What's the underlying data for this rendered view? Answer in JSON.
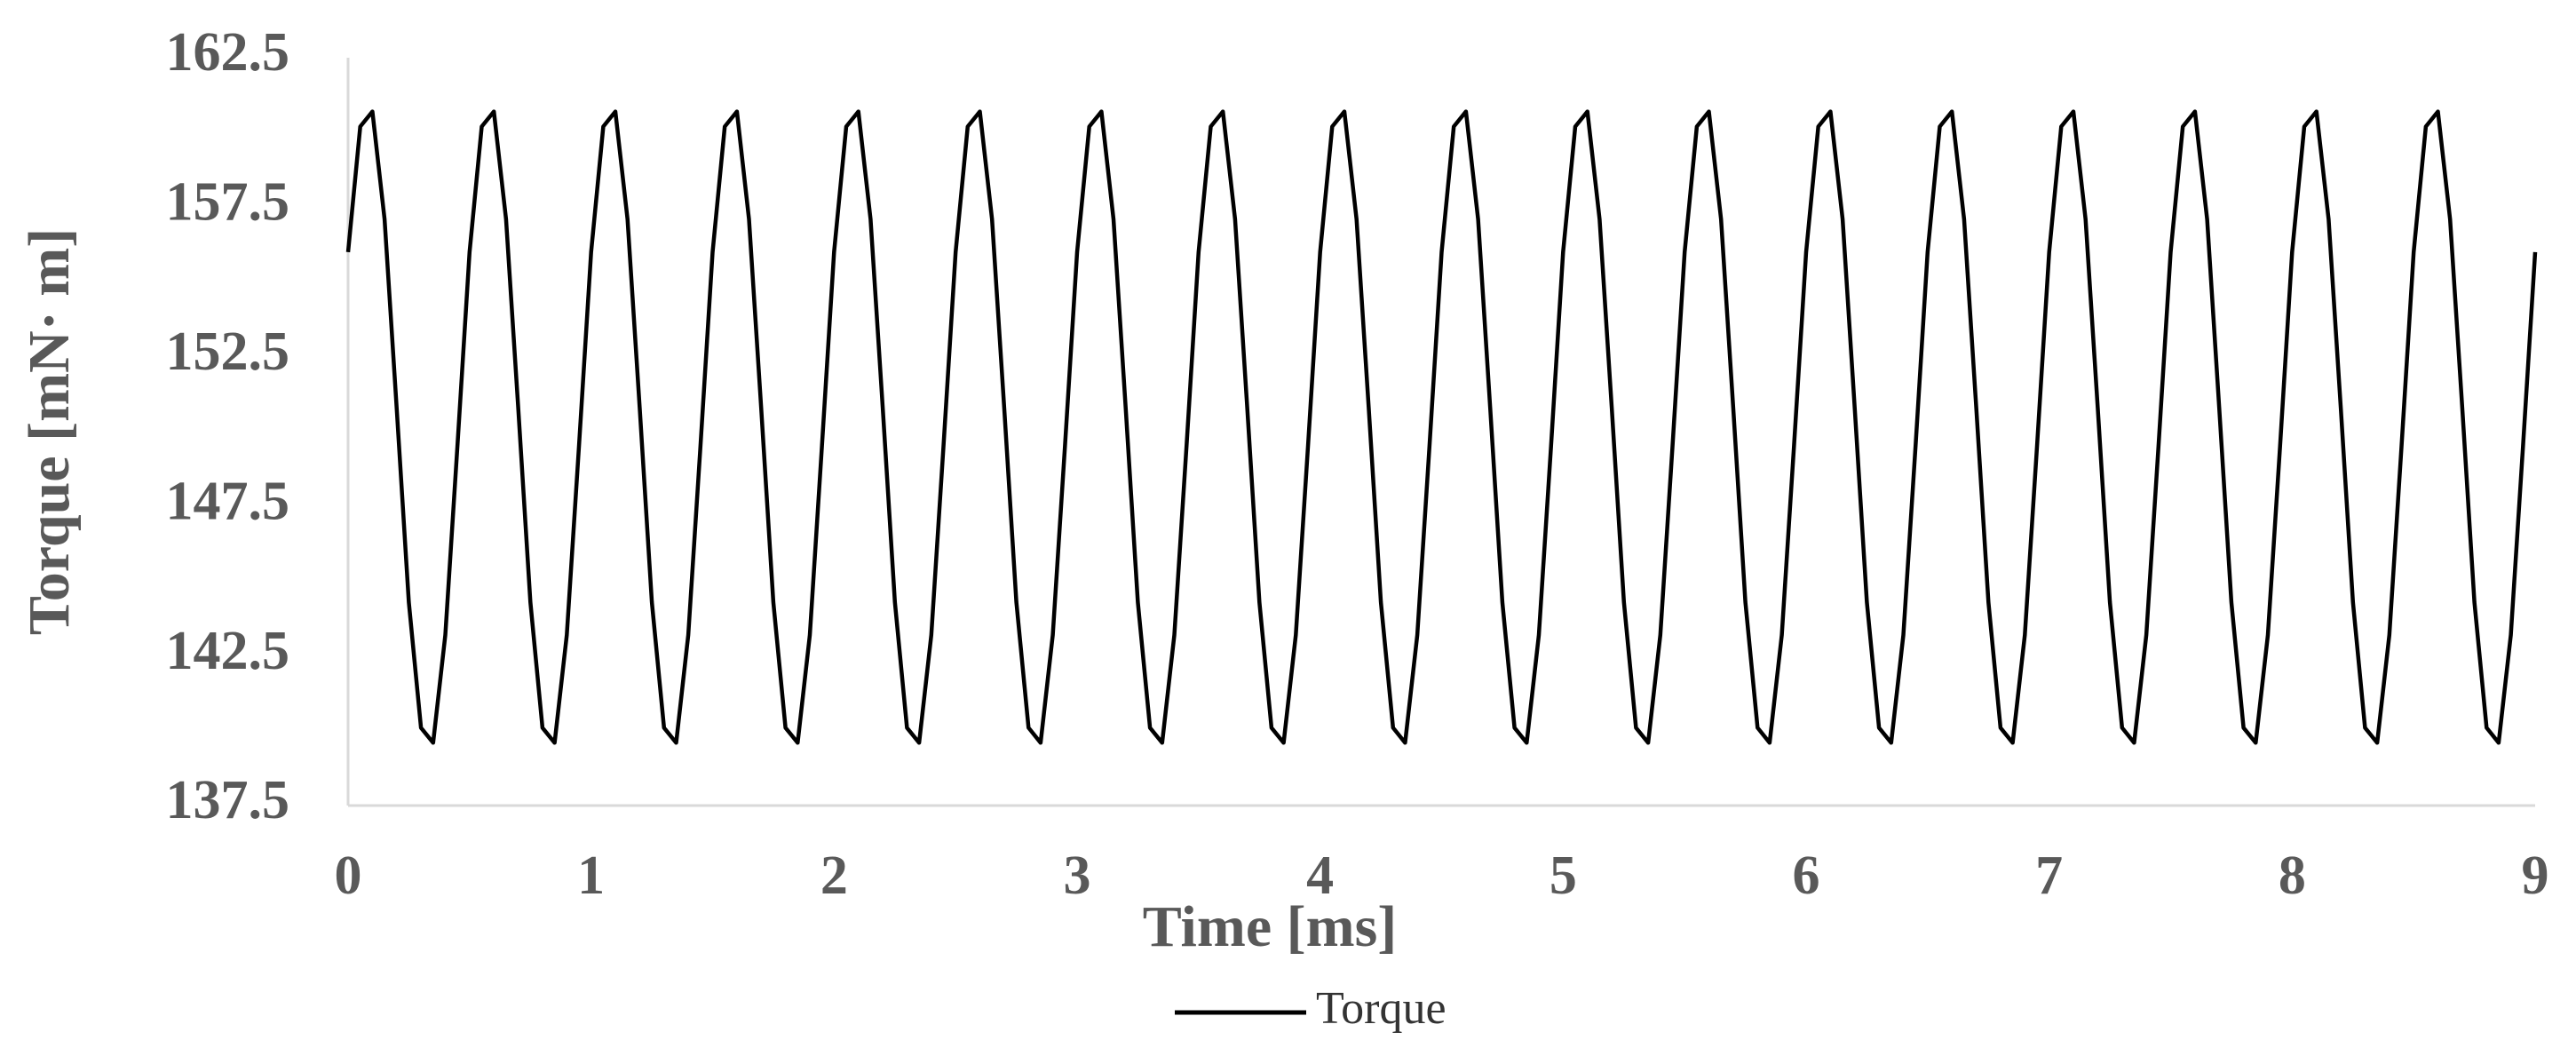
{
  "chart_data": {
    "type": "line",
    "x_label": "Time [ms]",
    "y_label": "Torque [mN· m]",
    "x": [
      0,
      0.05,
      0.1,
      0.15,
      0.2,
      0.25,
      0.3,
      0.35,
      0.4,
      0.45,
      0.5,
      0.55,
      0.6,
      0.65,
      0.7,
      0.75,
      0.8,
      0.85,
      0.9,
      0.95,
      1,
      1.05,
      1.1,
      1.15,
      1.2,
      1.25,
      1.3,
      1.35,
      1.4,
      1.45,
      1.5,
      1.55,
      1.6,
      1.65,
      1.7,
      1.75,
      1.8,
      1.85,
      1.9,
      1.95,
      2,
      2.05,
      2.1,
      2.15,
      2.2,
      2.25,
      2.3,
      2.35,
      2.4,
      2.45,
      2.5,
      2.55,
      2.6,
      2.65,
      2.7,
      2.75,
      2.8,
      2.85,
      2.9,
      2.95,
      3,
      3.05,
      3.1,
      3.15,
      3.2,
      3.25,
      3.3,
      3.35,
      3.4,
      3.45,
      3.5,
      3.55,
      3.6,
      3.65,
      3.7,
      3.75,
      3.8,
      3.85,
      3.9,
      3.95,
      4,
      4.05,
      4.1,
      4.15,
      4.2,
      4.25,
      4.3,
      4.35,
      4.4,
      4.45,
      4.5,
      4.55,
      4.6,
      4.65,
      4.7,
      4.75,
      4.8,
      4.85,
      4.9,
      4.95,
      5,
      5.05,
      5.1,
      5.15,
      5.2,
      5.25,
      5.3,
      5.35,
      5.4,
      5.45,
      5.5,
      5.55,
      5.6,
      5.65,
      5.7,
      5.75,
      5.8,
      5.85,
      5.9,
      5.95,
      6,
      6.05,
      6.1,
      6.15,
      6.2,
      6.25,
      6.3,
      6.35,
      6.4,
      6.45,
      6.5,
      6.55,
      6.6,
      6.65,
      6.7,
      6.75,
      6.8,
      6.85,
      6.9,
      6.95,
      7,
      7.05,
      7.1,
      7.15,
      7.2,
      7.25,
      7.3,
      7.35,
      7.4,
      7.45,
      7.5,
      7.55,
      7.6,
      7.65,
      7.7,
      7.75,
      7.8,
      7.85,
      7.9,
      7.95,
      8,
      8.05,
      8.1,
      8.15,
      8.2,
      8.25,
      8.3,
      8.35,
      8.4,
      8.45,
      8.5,
      8.55,
      8.6,
      8.65,
      8.7,
      8.75,
      8.8,
      8.85,
      8.9,
      8.95,
      9
    ],
    "series": [
      {
        "name": "Torque",
        "color": "#000000",
        "values": [
          156.0,
          160.2,
          160.7,
          157.1,
          150.8,
          144.3,
          140.1,
          139.6,
          143.2,
          149.5,
          156.0,
          160.2,
          160.7,
          157.1,
          150.8,
          144.3,
          140.1,
          139.6,
          143.2,
          149.5,
          156.0,
          160.2,
          160.7,
          157.1,
          150.8,
          144.3,
          140.1,
          139.6,
          143.2,
          149.5,
          156.0,
          160.2,
          160.7,
          157.1,
          150.8,
          144.3,
          140.1,
          139.6,
          143.2,
          149.5,
          156.0,
          160.2,
          160.7,
          157.1,
          150.8,
          144.3,
          140.1,
          139.6,
          143.2,
          149.5,
          156.0,
          160.2,
          160.7,
          157.1,
          150.8,
          144.3,
          140.1,
          139.6,
          143.2,
          149.5,
          156.0,
          160.2,
          160.7,
          157.1,
          150.8,
          144.3,
          140.1,
          139.6,
          143.2,
          149.5,
          156.0,
          160.2,
          160.7,
          157.1,
          150.8,
          144.3,
          140.1,
          139.6,
          143.2,
          149.5,
          156.0,
          160.2,
          160.7,
          157.1,
          150.8,
          144.3,
          140.1,
          139.6,
          143.2,
          149.5,
          156.0,
          160.2,
          160.7,
          157.1,
          150.8,
          144.3,
          140.1,
          139.6,
          143.2,
          149.5,
          156.0,
          160.2,
          160.7,
          157.1,
          150.8,
          144.3,
          140.1,
          139.6,
          143.2,
          149.5,
          156.0,
          160.2,
          160.7,
          157.1,
          150.8,
          144.3,
          140.1,
          139.6,
          143.2,
          149.5,
          156.0,
          160.2,
          160.7,
          157.1,
          150.8,
          144.3,
          140.1,
          139.6,
          143.2,
          149.5,
          156.0,
          160.2,
          160.7,
          157.1,
          150.8,
          144.3,
          140.1,
          139.6,
          143.2,
          149.5,
          156.0,
          160.2,
          160.7,
          157.1,
          150.8,
          144.3,
          140.1,
          139.6,
          143.2,
          149.5,
          156.0,
          160.2,
          160.7,
          157.1,
          150.8,
          144.3,
          140.1,
          139.6,
          143.2,
          149.5,
          156.0,
          160.2,
          160.7,
          157.1,
          150.8,
          144.3,
          140.1,
          139.6,
          143.2,
          149.5,
          156.0,
          160.2,
          160.7,
          157.1,
          150.8,
          144.3,
          140.1,
          139.6,
          143.2,
          149.5,
          156.0
        ]
      }
    ],
    "xlim": [
      0,
      9
    ],
    "xticks": [
      0,
      1,
      2,
      3,
      4,
      5,
      6,
      7,
      8,
      9
    ],
    "ylim": [
      137.5,
      162.5
    ],
    "yticks": [
      137.5,
      142.5,
      147.5,
      152.5,
      157.5,
      162.5
    ],
    "grid": false,
    "legend": "bottom"
  }
}
